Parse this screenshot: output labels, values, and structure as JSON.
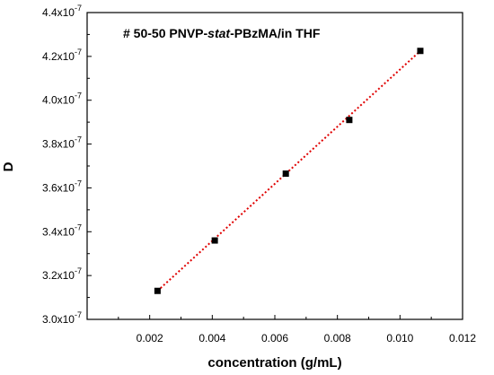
{
  "chart_data": {
    "type": "scatter",
    "annotation": {
      "prefix": "# 50-50 PNVP-",
      "italic": "stat",
      "suffix": "-PBzMA/in THF"
    },
    "xlabel": "concentration (g/mL)",
    "ylabel": "D",
    "xlim": [
      0.0,
      0.012
    ],
    "ylim": [
      3e-07,
      4.4e-07
    ],
    "x_ticks": [
      0.002,
      0.004,
      0.006,
      0.008,
      0.01,
      0.012
    ],
    "x_tick_labels": [
      "0.002",
      "0.004",
      "0.006",
      "0.008",
      "0.010",
      "0.012"
    ],
    "y_ticks": [
      3e-07,
      3.2e-07,
      3.4e-07,
      3.6e-07,
      3.8e-07,
      4e-07,
      4.2e-07,
      4.4e-07
    ],
    "y_tick_labels": [
      {
        "mantissa": "3.0x10",
        "exp": "-7"
      },
      {
        "mantissa": "3.2x10",
        "exp": "-7"
      },
      {
        "mantissa": "3.4x10",
        "exp": "-7"
      },
      {
        "mantissa": "3.6x10",
        "exp": "-7"
      },
      {
        "mantissa": "3.8x10",
        "exp": "-7"
      },
      {
        "mantissa": "4.0x10",
        "exp": "-7"
      },
      {
        "mantissa": "4.2x10",
        "exp": "-7"
      },
      {
        "mantissa": "4.4x10",
        "exp": "-7"
      }
    ],
    "points": [
      {
        "x": 0.00225,
        "y": 3.13e-07
      },
      {
        "x": 0.00408,
        "y": 3.36e-07
      },
      {
        "x": 0.00635,
        "y": 3.665e-07
      },
      {
        "x": 0.00838,
        "y": 3.91e-07
      },
      {
        "x": 0.01065,
        "y": 4.225e-07
      }
    ],
    "fit_line": {
      "x": [
        0.00225,
        0.01065
      ],
      "y": [
        3.13e-07,
        4.225e-07
      ]
    },
    "colors": {
      "marker": "#000000",
      "fit": "#e00000",
      "axis": "#000000"
    },
    "grid": false,
    "legend": "none"
  }
}
